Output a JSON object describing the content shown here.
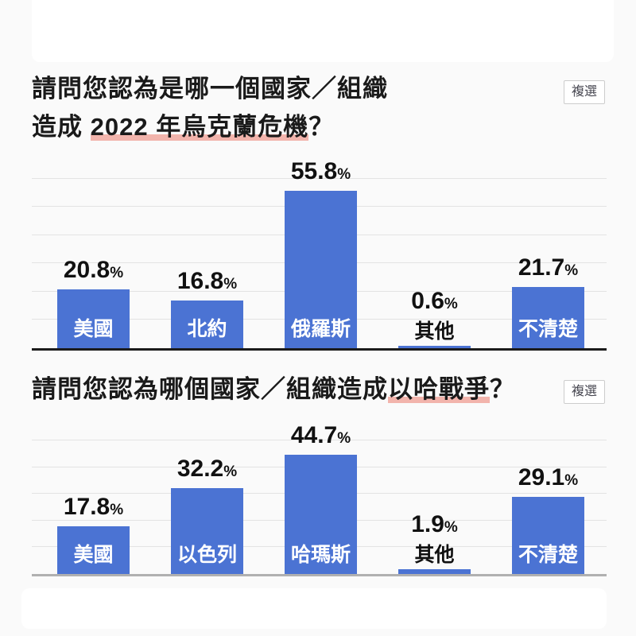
{
  "colors": {
    "page_bg": "#fafafa",
    "card_bg": "#ffffff",
    "bar": "#4b73d3",
    "grid": "#e3e3e3",
    "axis_primary": "#1b1b1b",
    "axis_secondary": "#b0b0b0",
    "highlight_underline": "#f2b4ac",
    "title_text": "#1a1a1a",
    "value_text": "#111111",
    "bar_label_text": "#ffffff",
    "badge_text": "#45454f",
    "badge_border": "#cccccc"
  },
  "sections": [
    {
      "badge": "複選",
      "title_line1": "請問您認為是哪一個國家／組織",
      "title_line2_prefix": "造成 ",
      "title_line2_highlight": "2022 年烏克蘭危機",
      "title_line2_suffix": "？"
    },
    {
      "badge": "複選",
      "title_prefix": "請問您認為哪個國家／組織造成",
      "title_highlight": "以哈戰爭",
      "title_suffix": "？"
    }
  ],
  "chart_data": [
    {
      "type": "bar",
      "title": "請問您認為是哪一個國家／組織造成 2022 年烏克蘭危機？",
      "note": "複選",
      "categories": [
        "美國",
        "北約",
        "俄羅斯",
        "其他",
        "不清楚"
      ],
      "values": [
        20.8,
        16.8,
        55.8,
        0.6,
        21.7
      ],
      "value_labels": [
        "20.8",
        "16.8",
        "55.8",
        "0.6",
        "21.7"
      ],
      "unit": "%",
      "ylim": [
        0,
        65
      ],
      "gridlines_pct": [
        10,
        20,
        30,
        40,
        50,
        60
      ],
      "grid": "on",
      "legend": "none",
      "xlabel": "",
      "ylabel": ""
    },
    {
      "type": "bar",
      "title": "請問您認為哪個國家／組織造成以哈戰爭？",
      "note": "複選",
      "categories": [
        "美國",
        "以色列",
        "哈瑪斯",
        "其他",
        "不清楚"
      ],
      "values": [
        17.8,
        32.2,
        44.7,
        1.9,
        29.1
      ],
      "value_labels": [
        "17.8",
        "32.2",
        "44.7",
        "1.9",
        "29.1"
      ],
      "unit": "%",
      "ylim": [
        0,
        55
      ],
      "gridlines_pct": [
        10,
        20,
        30,
        40,
        50
      ],
      "grid": "on",
      "legend": "none",
      "xlabel": "",
      "ylabel": ""
    }
  ]
}
